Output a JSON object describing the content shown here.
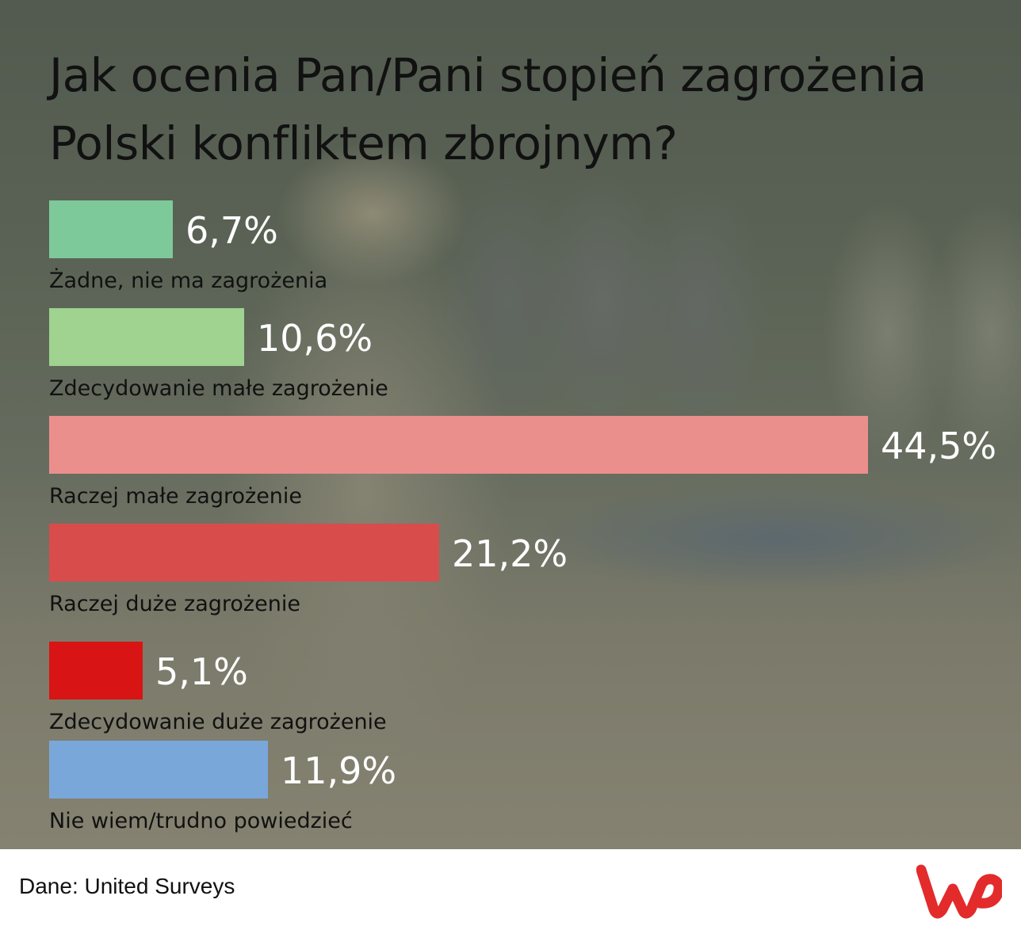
{
  "title": "Jak ocenia Pan/Pani stopień zagrożenia Polski konfliktem zbrojnym?",
  "source": "Dane: United Surveys",
  "logo_text": "WP",
  "chart_data": {
    "type": "bar",
    "orientation": "horizontal",
    "title": "Jak ocenia Pan/Pani stopień zagrożenia Polski konfliktem zbrojnym?",
    "categories": [
      "Żadne, nie ma zagrożenia",
      "Zdecydowanie małe zagrożenie",
      "Raczej małe zagrożenie",
      "Raczej duże zagrożenie",
      "Zdecydowanie duże zagrożenie",
      "Nie wiem/trudno powiedzieć"
    ],
    "values": [
      6.7,
      10.6,
      44.5,
      21.2,
      5.1,
      11.9
    ],
    "labels": [
      "6,7%",
      "10,6%",
      "44,5%",
      "21,2%",
      "5,1%",
      "11,9%"
    ],
    "colors": [
      "#7ec99a",
      "#9fd38f",
      "#eb8f8c",
      "#d94c4c",
      "#d81414",
      "#7aa7d9"
    ],
    "unit": "%",
    "xlim": [
      0,
      44.5
    ],
    "grid": false,
    "legend": "none"
  }
}
